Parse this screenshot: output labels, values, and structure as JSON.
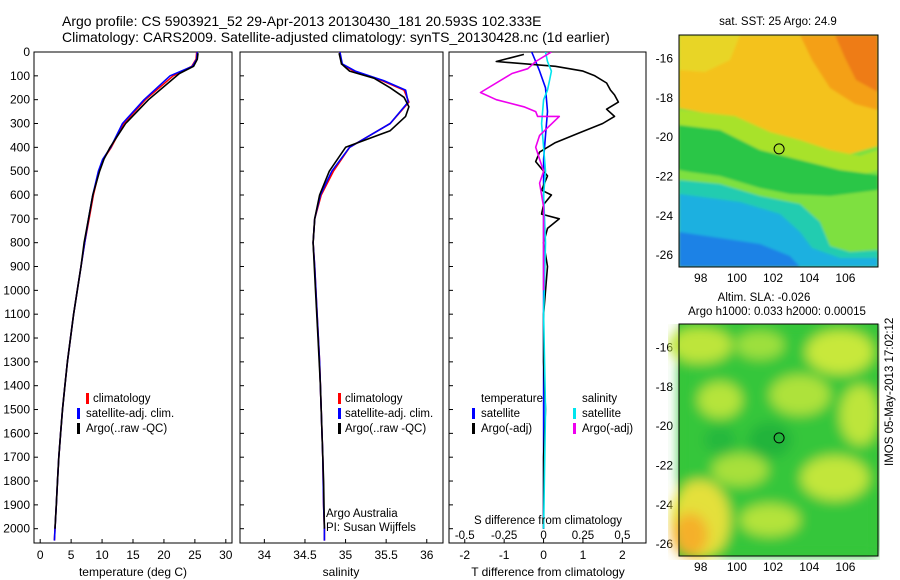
{
  "header": {
    "title_line1": "Argo profile: CS 5903921_52 29-Apr-2013 20130430_181 20.593S 102.333E",
    "title_line2": "Climatology: CARS2009. Satellite-adjusted climatology: synTS_20130428.nc (1d earlier)"
  },
  "colors": {
    "climatology": "#ff0000",
    "satellite": "#0000ff",
    "argo": "#000000",
    "salinity_satellite": "#00e5ee",
    "salinity_argo": "#ee00ee"
  },
  "footer": {
    "stamp": "IMOS 05-May-2013 17:02:12"
  },
  "chart_data": [
    {
      "id": "temperature",
      "type": "line",
      "xlabel": "temperature (deg C)",
      "ylabel": "",
      "xlim": [
        -1,
        31
      ],
      "ylim": [
        2060,
        0
      ],
      "x_ticks": [
        0,
        5,
        10,
        15,
        20,
        25,
        30
      ],
      "y_ticks": [
        0,
        100,
        200,
        300,
        400,
        500,
        600,
        700,
        800,
        900,
        1000,
        1100,
        1200,
        1300,
        1400,
        1500,
        1600,
        1700,
        1800,
        1900,
        2000
      ],
      "legend": [
        "climatology",
        "satellite-adj. clim.",
        "Argo(..raw -QC)"
      ],
      "series": [
        {
          "name": "climatology",
          "color": "#ff0000",
          "x": [
            25.3,
            25.2,
            24.5,
            21.5,
            17.0,
            13.5,
            11.5,
            10.2,
            9.5,
            8.6,
            7.9,
            7.2,
            6.6,
            6.0,
            5.4,
            4.9,
            4.4,
            4.0,
            3.6,
            3.3,
            3.0,
            2.8,
            2.6,
            2.4,
            2.3
          ],
          "y": [
            0,
            30,
            60,
            100,
            200,
            300,
            400,
            450,
            500,
            600,
            700,
            800,
            900,
            1000,
            1100,
            1200,
            1300,
            1400,
            1500,
            1600,
            1700,
            1800,
            1900,
            2000,
            2050
          ]
        },
        {
          "name": "satellite-adj. clim.",
          "color": "#0000ff",
          "x": [
            25.4,
            25.3,
            24.6,
            21.0,
            16.8,
            13.3,
            11.4,
            10.1,
            9.4,
            8.5,
            7.8,
            7.2,
            6.6,
            6.0,
            5.4,
            4.9,
            4.4,
            4.0,
            3.6,
            3.3,
            3.0,
            2.8,
            2.6,
            2.4,
            2.3
          ],
          "y": [
            0,
            30,
            60,
            100,
            200,
            300,
            400,
            450,
            500,
            600,
            700,
            800,
            900,
            1000,
            1100,
            1200,
            1300,
            1400,
            1500,
            1600,
            1700,
            1800,
            1900,
            2000,
            2050
          ]
        },
        {
          "name": "Argo(..raw -QC)",
          "color": "#000000",
          "x": [
            25.5,
            25.4,
            24.8,
            22.5,
            17.5,
            13.8,
            11.3,
            10.3,
            9.6,
            8.5,
            7.8,
            7.1,
            6.6,
            6.0,
            5.4,
            4.9,
            4.4,
            4.0,
            3.6,
            3.3,
            3.0,
            2.8,
            2.6,
            2.4
          ],
          "y": [
            5,
            30,
            60,
            90,
            200,
            300,
            400,
            450,
            500,
            600,
            700,
            800,
            900,
            1000,
            1100,
            1200,
            1300,
            1400,
            1500,
            1600,
            1700,
            1800,
            1900,
            2000
          ]
        }
      ]
    },
    {
      "id": "salinity",
      "type": "line",
      "xlabel": "salinity",
      "ylabel": "",
      "xlim": [
        33.7,
        36.2
      ],
      "ylim": [
        2060,
        0
      ],
      "x_ticks": [
        34,
        34.5,
        35,
        35.5,
        36
      ],
      "legend": [
        "climatology",
        "satellite-adj. clim.",
        "Argo(..raw -QC)"
      ],
      "annotation": [
        "Argo Australia",
        "PI: Susan Wijffels"
      ],
      "series": [
        {
          "name": "climatology",
          "color": "#ff0000",
          "x": [
            34.93,
            34.95,
            35.1,
            35.45,
            35.72,
            35.78,
            35.55,
            35.05,
            34.85,
            34.7,
            34.62,
            34.6,
            34.62,
            34.65,
            34.68,
            34.7,
            34.72,
            34.73,
            34.74,
            34.74
          ],
          "y": [
            0,
            50,
            80,
            120,
            160,
            210,
            300,
            400,
            500,
            600,
            700,
            800,
            900,
            1100,
            1300,
            1500,
            1700,
            1900,
            2000,
            2050
          ]
        },
        {
          "name": "satellite-adj. clim.",
          "color": "#0000ff",
          "x": [
            34.93,
            34.96,
            35.12,
            35.47,
            35.74,
            35.77,
            35.55,
            35.05,
            34.83,
            34.69,
            34.62,
            34.6,
            34.62,
            34.65,
            34.68,
            34.7,
            34.72,
            34.73,
            34.74,
            34.74
          ],
          "y": [
            0,
            50,
            80,
            120,
            160,
            210,
            300,
            400,
            500,
            600,
            700,
            800,
            900,
            1100,
            1300,
            1500,
            1700,
            1900,
            2000,
            2050
          ]
        },
        {
          "name": "Argo(..raw -QC)",
          "color": "#000000",
          "x": [
            34.92,
            34.95,
            35.05,
            35.35,
            35.55,
            35.72,
            35.78,
            35.74,
            35.55,
            35.0,
            34.8,
            34.68,
            34.62,
            34.6,
            34.63,
            34.66,
            34.69,
            34.71,
            34.73,
            34.74
          ],
          "y": [
            5,
            50,
            80,
            110,
            150,
            190,
            230,
            270,
            330,
            400,
            500,
            600,
            700,
            800,
            1000,
            1200,
            1400,
            1600,
            1800,
            2000
          ]
        }
      ]
    },
    {
      "id": "difference",
      "type": "line",
      "xlabel": "T difference from climatology",
      "xlabel_top": "S difference from climatology",
      "xlim": [
        -2.4,
        2.6
      ],
      "ylim": [
        2060,
        0
      ],
      "x_ticks": [
        -2,
        -1,
        0,
        1,
        2
      ],
      "x_ticks_s": [
        -0.5,
        -0.25,
        0,
        0.25,
        0.5
      ],
      "legend_left": [
        "temperature",
        "satellite",
        "Argo(-adj)"
      ],
      "legend_right": [
        "salinity",
        "satellite",
        "Argo(-adj)"
      ],
      "series": [
        {
          "name": "temperature satellite",
          "color": "#0000ff",
          "x": [
            -0.3,
            -0.2,
            -0.1,
            0.05,
            0.1,
            0.05,
            0.0,
            0.0,
            0.0,
            0.0,
            0.0,
            0.0,
            0.0
          ],
          "y": [
            0,
            40,
            80,
            150,
            250,
            350,
            450,
            600,
            800,
            1100,
            1400,
            1700,
            2000
          ]
        },
        {
          "name": "temperature Argo(-adj)",
          "color": "#000000",
          "x": [
            -0.5,
            -1.2,
            0.3,
            1.0,
            1.3,
            1.6,
            1.7,
            1.8,
            1.9,
            1.6,
            1.8,
            1.5,
            0.9,
            0.3,
            -0.1,
            -0.2,
            0.1,
            -0.05,
            0.2,
            0.0,
            -0.05,
            0.4,
            0.1,
            0.0,
            0.1,
            0.0,
            0.0,
            0.05,
            0.0,
            0.0,
            0.0
          ],
          "y": [
            10,
            40,
            60,
            80,
            100,
            130,
            160,
            180,
            210,
            240,
            270,
            300,
            340,
            380,
            420,
            460,
            520,
            580,
            600,
            640,
            680,
            700,
            740,
            800,
            900,
            1100,
            1300,
            1500,
            1700,
            1900,
            2000
          ]
        },
        {
          "name": "salinity satellite",
          "color": "#00e5ee",
          "x": [
            0.05,
            0.1,
            0.2,
            0.15,
            0.1,
            0.0,
            -0.05,
            0.0,
            0.05,
            0.0,
            0.05,
            0.0,
            0.05,
            0.0
          ],
          "y": [
            0,
            40,
            80,
            120,
            160,
            200,
            300,
            400,
            500,
            600,
            800,
            1100,
            1500,
            2000
          ]
        },
        {
          "name": "salinity Argo(-adj)",
          "color": "#ee00ee",
          "x": [
            0.2,
            -0.2,
            -0.4,
            -0.8,
            -1.6,
            -1.2,
            -0.5,
            -0.2,
            -0.15,
            0.4,
            -0.1,
            -0.2,
            -0.1,
            0.0,
            -0.1,
            0.0,
            0.0,
            0.0
          ],
          "y": [
            0,
            40,
            70,
            90,
            170,
            200,
            230,
            250,
            270,
            270,
            350,
            400,
            450,
            500,
            550,
            650,
            800,
            1000
          ]
        }
      ]
    },
    {
      "id": "sst-map",
      "type": "heatmap",
      "title": "sat. SST: 25 Argo: 24.9",
      "x_ticks": [
        98,
        100,
        102,
        104,
        106
      ],
      "y_ticks": [
        -16,
        -18,
        -20,
        -22,
        -24,
        -26
      ],
      "xlim": [
        96.8,
        107.8
      ],
      "ylim": [
        -26.6,
        -14.8
      ],
      "marker": [
        102.333,
        -20.593
      ]
    },
    {
      "id": "sla-map",
      "type": "heatmap",
      "title": "Altim. SLA: -0.026",
      "subtitle": "Argo h1000: 0.033 h2000: 0.00015",
      "x_ticks": [
        98,
        100,
        102,
        104,
        106
      ],
      "y_ticks": [
        -16,
        -18,
        -20,
        -22,
        -24,
        -26
      ],
      "xlim": [
        96.8,
        107.8
      ],
      "ylim": [
        -26.6,
        -14.8
      ],
      "marker": [
        102.333,
        -20.593
      ]
    }
  ]
}
